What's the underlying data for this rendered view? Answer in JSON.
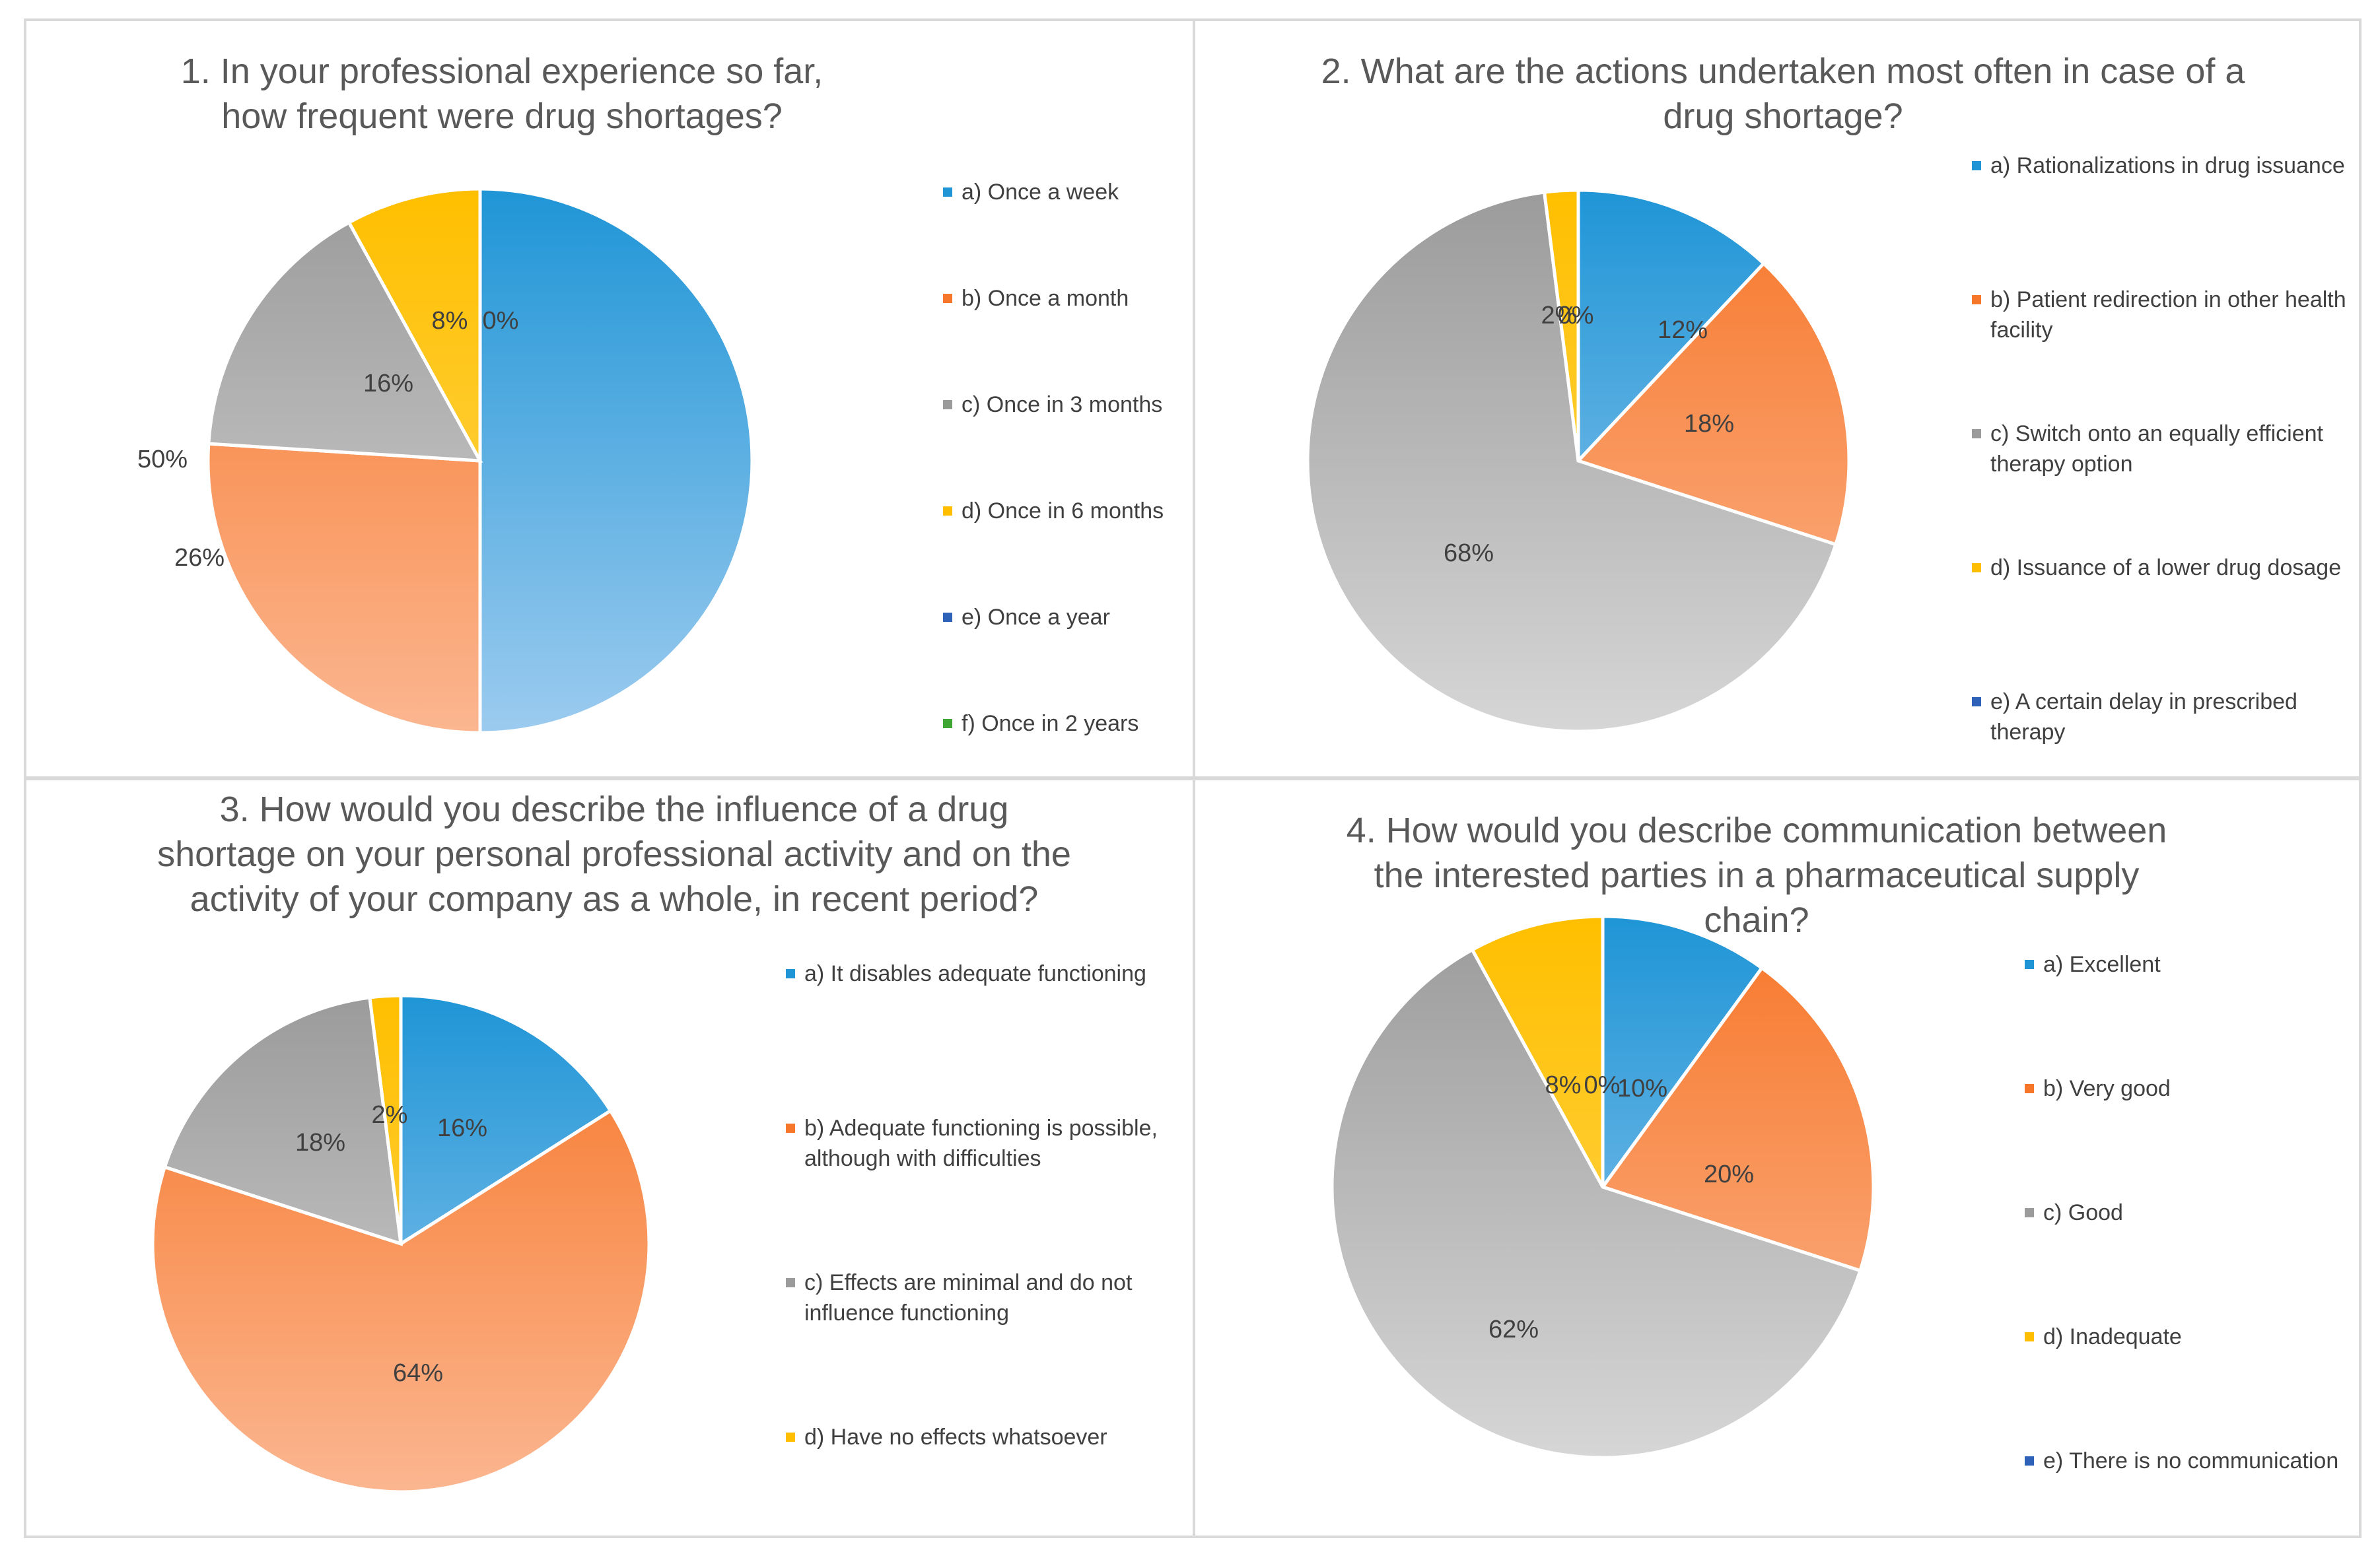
{
  "colors": {
    "blue_top": "#1f95d6",
    "blue_bottom": "#9ccbef",
    "orange_top": "#f7772a",
    "orange_bottom": "#fbb690",
    "gray_top": "#9b9b9b",
    "gray_bottom": "#d6d6d6",
    "yellow_top": "#ffbf00",
    "yellow_bottom": "#ffd95c",
    "dark_blue": "#2e62b8",
    "green": "#3fa535"
  },
  "chart_data": [
    {
      "type": "pie",
      "title": "1. In your professional experience so far, how frequent were drug shortages?",
      "categories": [
        "a)  Once a week",
        "b)  Once a month",
        "c) Once in 3 months",
        "d) Once in 6 months",
        "e) Once a year",
        "f) Once in 2 years"
      ],
      "values": [
        50,
        26,
        16,
        8,
        0,
        0
      ],
      "labels": [
        "50%",
        "26%",
        "16%",
        "8%",
        "0%",
        ""
      ],
      "legend_colors": [
        "blue",
        "orange",
        "gray",
        "yellow",
        "dark_blue",
        "green"
      ],
      "legend_position": "right"
    },
    {
      "type": "pie",
      "title": "2. What are the actions undertaken most often in case of a drug shortage?",
      "categories": [
        "a) Rationalizations in drug issuance",
        "b) Patient redirection in other health facility",
        "c) Switch onto an equally efficient therapy option",
        "d) Issuance of a lower drug dosage",
        "e) A certain delay in prescribed therapy"
      ],
      "values": [
        12,
        18,
        68,
        2,
        0
      ],
      "labels": [
        "12%",
        "18%",
        "68%",
        "2%",
        "0%"
      ],
      "legend_colors": [
        "blue",
        "orange",
        "gray",
        "yellow",
        "dark_blue"
      ],
      "legend_position": "right"
    },
    {
      "type": "pie",
      "title": "3. How would you describe the influence of a drug shortage on your personal professional activity and on the activity of your company as a whole, in recent period?",
      "categories": [
        "a) It disables adequate functioning",
        "b) Adequate functioning is possible, although with difficulties",
        "c) Effects are minimal and do not influence functioning",
        "d)  Have no effects whatsoever"
      ],
      "values": [
        16,
        64,
        18,
        2
      ],
      "labels": [
        "16%",
        "64%",
        "18%",
        "2%"
      ],
      "legend_colors": [
        "blue",
        "orange",
        "gray",
        "yellow"
      ],
      "legend_position": "right"
    },
    {
      "type": "pie",
      "title": "4. How would you describe communication between the interested parties in a pharmaceutical supply chain?",
      "categories": [
        "a) Excellent",
        "b) Very good",
        "c) Good",
        "d) Inadequate",
        "e) There is no communication"
      ],
      "values": [
        10,
        20,
        62,
        8,
        0
      ],
      "labels": [
        "10%",
        "20%",
        "62%",
        "8%",
        "0%"
      ],
      "legend_colors": [
        "blue",
        "orange",
        "gray",
        "yellow",
        "dark_blue"
      ],
      "legend_position": "right"
    }
  ]
}
